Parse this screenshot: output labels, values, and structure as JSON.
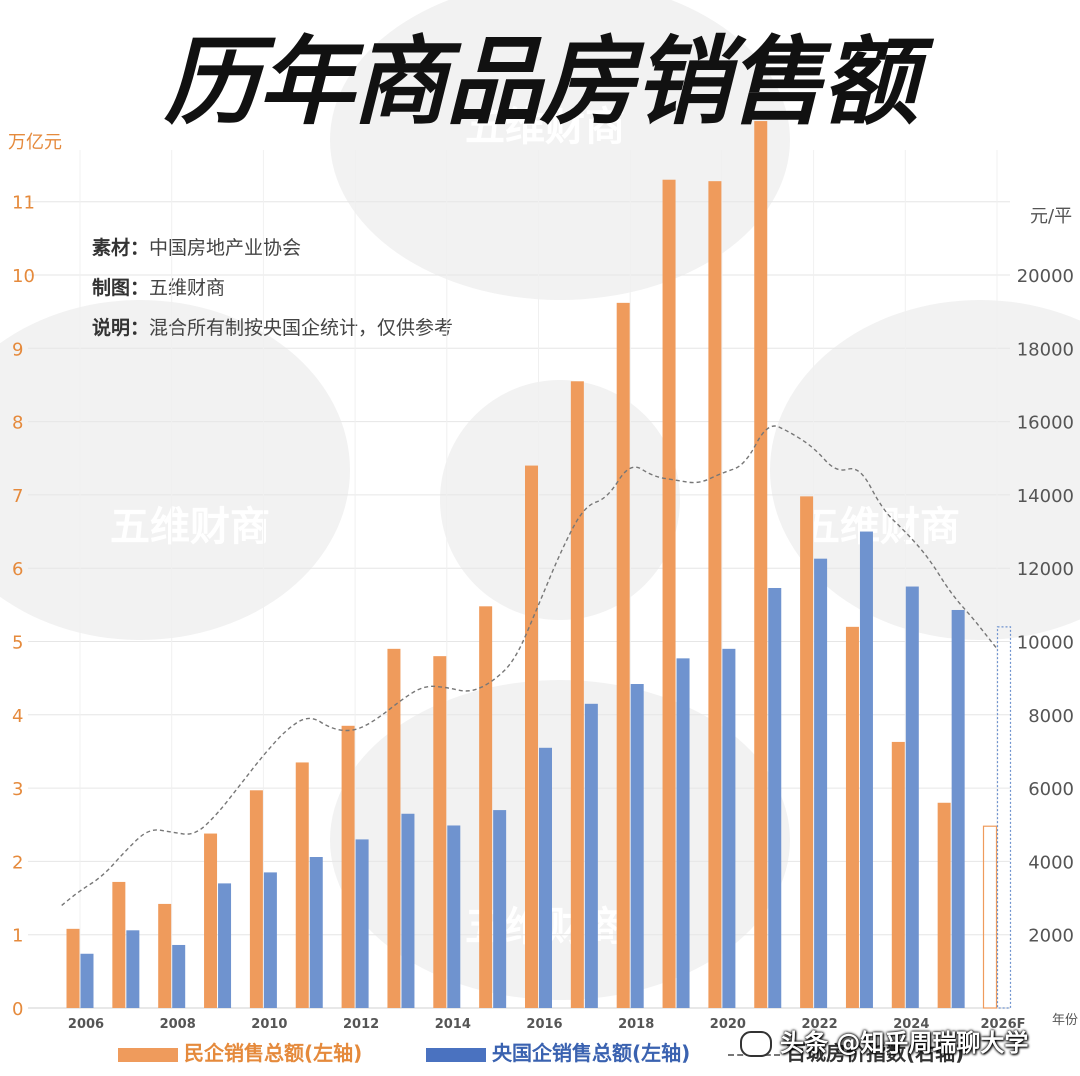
{
  "title": "历年商品房销售额",
  "left_axis_unit": "万亿元",
  "right_axis_unit": "元/平",
  "notes": [
    {
      "key": "素材：",
      "value": "中国房地产业协会"
    },
    {
      "key": "制图：",
      "value": "五维财商"
    },
    {
      "key": "说明：",
      "value": "混合所有制按央国企统计，仅供参考"
    }
  ],
  "watermark": "五维财商",
  "credit": "头条 @知乎周瑞聊大学",
  "colors": {
    "private": "#ef9b5c",
    "state": "#6f93cf",
    "index_line": "#777777",
    "grid": "#e6e6e6",
    "left_ticks": "#e58a3c"
  },
  "chart_data": {
    "type": "bar",
    "x_label": "年份",
    "years": [
      "2006",
      "2007",
      "2008",
      "2009",
      "2010",
      "2011",
      "2012",
      "2013",
      "2014",
      "2015",
      "2016",
      "2017",
      "2018",
      "2019",
      "2020",
      "2021",
      "2022",
      "2023",
      "2024",
      "2025",
      "2026F"
    ],
    "x_tick_labels": [
      "2006",
      "",
      "2008",
      "",
      "2010",
      "",
      "2012",
      "",
      "2014",
      "",
      "2016",
      "",
      "2018",
      "",
      "2020",
      "",
      "2022",
      "",
      "2024",
      "",
      "2026F"
    ],
    "left_axis": {
      "min": 0,
      "max": 12,
      "ticks": [
        0,
        1,
        2,
        3,
        4,
        5,
        6,
        7,
        8,
        9,
        10,
        11
      ]
    },
    "right_axis": {
      "min": 0,
      "max": 24000,
      "ticks": [
        2000,
        4000,
        6000,
        8000,
        10000,
        12000,
        14000,
        16000,
        18000,
        20000
      ]
    },
    "series": [
      {
        "name": "民企销售总额(左轴)",
        "axis": "left",
        "values": [
          1.08,
          1.72,
          1.42,
          2.38,
          2.97,
          3.35,
          3.85,
          4.9,
          4.8,
          5.48,
          7.4,
          8.55,
          9.62,
          11.3,
          11.28,
          12.1,
          6.98,
          5.2,
          3.63,
          2.8,
          2.48
        ],
        "forecast_last": true
      },
      {
        "name": "央国企销售总额(左轴)",
        "axis": "left",
        "values": [
          0.74,
          1.06,
          0.86,
          1.7,
          1.85,
          2.06,
          2.3,
          2.65,
          2.49,
          2.7,
          3.55,
          4.15,
          4.42,
          4.77,
          4.9,
          5.73,
          6.13,
          6.5,
          5.75,
          5.43,
          5.2
        ],
        "forecast_last": true
      },
      {
        "name": "百城房价指数(右轴)",
        "axis": "right",
        "type": "line",
        "dashed": true,
        "x": [
          2005.6,
          2006.0,
          2006.5,
          2007.0,
          2007.5,
          2008.0,
          2008.5,
          2009.0,
          2009.5,
          2010.0,
          2010.5,
          2011.0,
          2011.5,
          2012.0,
          2012.5,
          2013.0,
          2013.5,
          2014.0,
          2014.5,
          2015.0,
          2015.5,
          2016.0,
          2016.5,
          2017.0,
          2017.5,
          2018.0,
          2018.5,
          2019.0,
          2019.5,
          2020.0,
          2020.5,
          2021.0,
          2021.5,
          2022.0,
          2022.5,
          2023.0,
          2023.5,
          2024.0,
          2024.5,
          2025.0,
          2025.5,
          2026.0
        ],
        "values": [
          2800,
          3200,
          3600,
          4300,
          4900,
          4800,
          4700,
          5300,
          6100,
          6900,
          7600,
          8000,
          7600,
          7550,
          7900,
          8400,
          8800,
          8750,
          8600,
          8900,
          9500,
          11000,
          12500,
          13700,
          13900,
          14900,
          14500,
          14400,
          14300,
          14600,
          14800,
          16000,
          15700,
          15300,
          14600,
          14800,
          13600,
          13000,
          12300,
          11300,
          10600,
          9800
        ]
      }
    ],
    "legend_position": "bottom",
    "grid": true
  }
}
